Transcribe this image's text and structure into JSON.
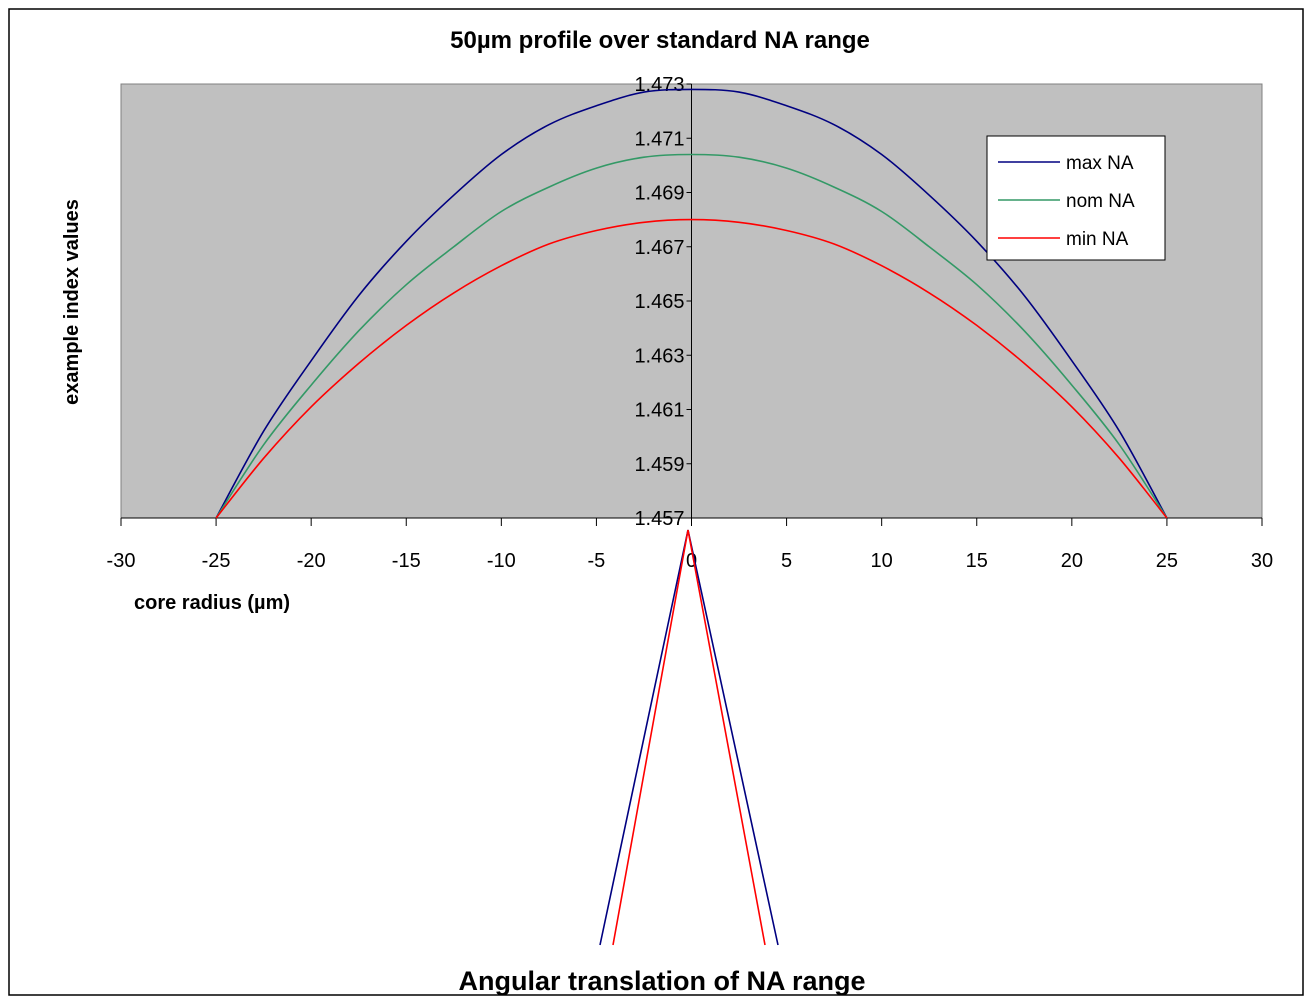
{
  "chart_data": {
    "type": "line",
    "title": "50µm profile over standard NA range",
    "xlabel": "core radius (µm)",
    "ylabel": "example index values",
    "xlim": [
      -30,
      30
    ],
    "ylim": [
      1.457,
      1.473
    ],
    "x_ticks": [
      "-30",
      "-25",
      "-20",
      "-15",
      "-10",
      "-5",
      "0",
      "5",
      "10",
      "15",
      "20",
      "25",
      "30"
    ],
    "y_ticks": [
      "1.457",
      "1.459",
      "1.461",
      "1.463",
      "1.465",
      "1.467",
      "1.469",
      "1.471",
      "1.473"
    ],
    "grid": false,
    "legend_position": "top-right",
    "series": [
      {
        "name": "max NA",
        "color": "#000080",
        "x": [
          -25,
          -22.5,
          -20,
          -17.5,
          -15,
          -12.5,
          -10,
          -7.5,
          -5,
          -2.5,
          0,
          2.5,
          5,
          7.5,
          10,
          12.5,
          15,
          17.5,
          20,
          22.5,
          25
        ],
        "y": [
          1.457,
          1.4602,
          1.4628,
          1.4652,
          1.4672,
          1.4689,
          1.4704,
          1.4715,
          1.4722,
          1.4727,
          1.4728,
          1.4727,
          1.4722,
          1.4715,
          1.4704,
          1.4689,
          1.4672,
          1.4652,
          1.4628,
          1.4602,
          1.457
        ]
      },
      {
        "name": "nom NA",
        "color": "#339966",
        "x": [
          -25,
          -22.5,
          -20,
          -17.5,
          -15,
          -12.5,
          -10,
          -7.5,
          -5,
          -2.5,
          0,
          2.5,
          5,
          7.5,
          10,
          12.5,
          15,
          17.5,
          20,
          22.5,
          25
        ],
        "y": [
          1.457,
          1.4597,
          1.4619,
          1.4639,
          1.4656,
          1.467,
          1.4683,
          1.4692,
          1.4699,
          1.4703,
          1.4704,
          1.4703,
          1.4699,
          1.4692,
          1.4683,
          1.467,
          1.4656,
          1.4639,
          1.4619,
          1.4597,
          1.457
        ]
      },
      {
        "name": "min NA",
        "color": "#ff0000",
        "x": [
          -25,
          -22.5,
          -20,
          -17.5,
          -15,
          -12.5,
          -10,
          -7.5,
          -5,
          -2.5,
          0,
          2.5,
          5,
          7.5,
          10,
          12.5,
          15,
          17.5,
          20,
          22.5,
          25
        ],
        "y": [
          1.457,
          1.4592,
          1.4611,
          1.4627,
          1.4641,
          1.4653,
          1.4663,
          1.4671,
          1.4676,
          1.4679,
          1.468,
          1.4679,
          1.4676,
          1.4671,
          1.4663,
          1.4653,
          1.4641,
          1.4627,
          1.4611,
          1.4592,
          1.457
        ]
      }
    ],
    "angular_diagram": {
      "title": "Angular translation of NA range",
      "cones": [
        {
          "name": "max NA",
          "color": "#000080"
        },
        {
          "name": "min NA",
          "color": "#ff0000"
        }
      ]
    }
  }
}
